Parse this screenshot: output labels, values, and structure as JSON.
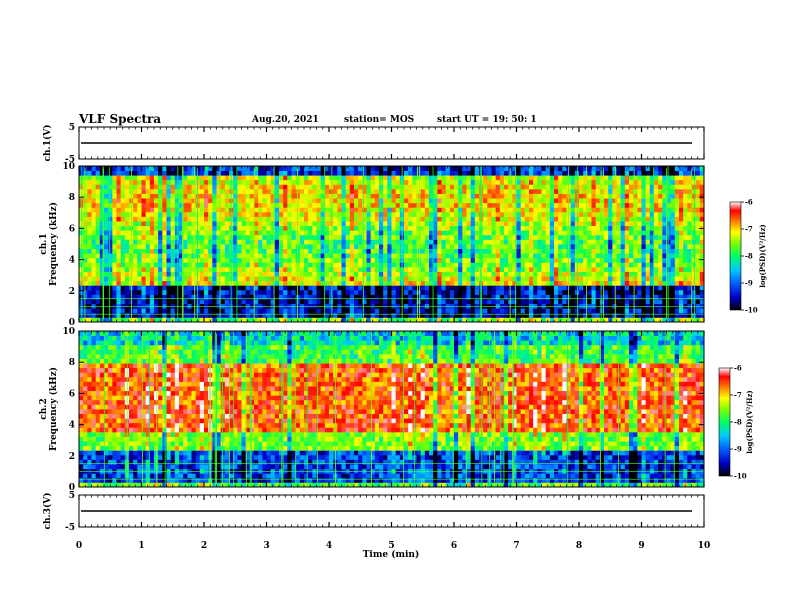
{
  "header": {
    "title": "VLF Spectra",
    "date": "Aug.20, 2021",
    "station": "station= MOS",
    "start": "start  UT =   19: 50: 1"
  },
  "chart_data": [
    {
      "type": "line",
      "ylabel": "ch.1(V)",
      "ylim": [
        -5,
        5
      ],
      "yticks": [
        "5",
        "-5"
      ],
      "baseline": 0
    },
    {
      "type": "heatmap",
      "ylabel": "ch.1\nFrequency (kHz)",
      "ylabel_top": "ch.1",
      "ylabel_bottom": "Frequency (kHz)",
      "ylim": [
        0,
        10
      ],
      "yticks": [
        "0",
        "2",
        "4",
        "6",
        "8",
        "10"
      ],
      "colorbar": {
        "label": "log(PSD)(V²/Hz)",
        "range": [
          -10,
          -6
        ],
        "ticks": [
          "-6",
          "-7",
          "-8",
          "-9",
          "-10"
        ]
      }
    },
    {
      "type": "heatmap",
      "ylabel": "ch.2\nFrequency (kHz)",
      "ylabel_top": "ch.2",
      "ylabel_bottom": "Frequency (kHz)",
      "ylim": [
        0,
        10
      ],
      "yticks": [
        "0",
        "2",
        "4",
        "6",
        "8",
        "10"
      ],
      "colorbar": {
        "label": "log(PSD)(V²/Hz)",
        "range": [
          -10,
          -6
        ],
        "ticks": [
          "-6",
          "-7",
          "-8",
          "-9",
          "-10"
        ]
      }
    },
    {
      "type": "line",
      "ylabel": "ch.3(V)",
      "ylim": [
        -5,
        5
      ],
      "yticks": [
        "5",
        "-5"
      ],
      "baseline": 0
    }
  ],
  "xaxis": {
    "label": "Time  (min)",
    "xlim": [
      0,
      10
    ],
    "ticks": [
      "0",
      "1",
      "2",
      "3",
      "4",
      "5",
      "6",
      "7",
      "8",
      "9",
      "10"
    ]
  }
}
